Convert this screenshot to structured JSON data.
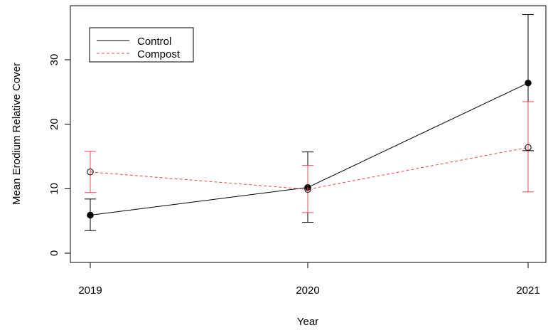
{
  "chart_data": {
    "type": "line",
    "xlabel": "Year",
    "ylabel": "Mean Erodium Relative Cover",
    "x": [
      "2019",
      "2020",
      "2021"
    ],
    "ylim": [
      -1.5,
      38.5
    ],
    "yticks": [
      0,
      10,
      20,
      30
    ],
    "grid": false,
    "legend": {
      "position": "top-left",
      "entries": [
        "Control",
        "Compost"
      ]
    },
    "series": [
      {
        "name": "Control",
        "color": "#000000",
        "line_style": "solid",
        "marker": "filled-circle",
        "values": [
          5.9,
          10.2,
          26.4
        ],
        "error_low": [
          3.5,
          4.8,
          15.9
        ],
        "error_high": [
          8.4,
          15.7,
          37.0
        ]
      },
      {
        "name": "Compost",
        "color": "#e8474f",
        "line_style": "dashed",
        "marker": "open-circle",
        "values": [
          12.6,
          9.9,
          16.4
        ],
        "error_low": [
          9.4,
          6.3,
          9.5
        ],
        "error_high": [
          15.8,
          13.6,
          23.5
        ]
      }
    ]
  }
}
